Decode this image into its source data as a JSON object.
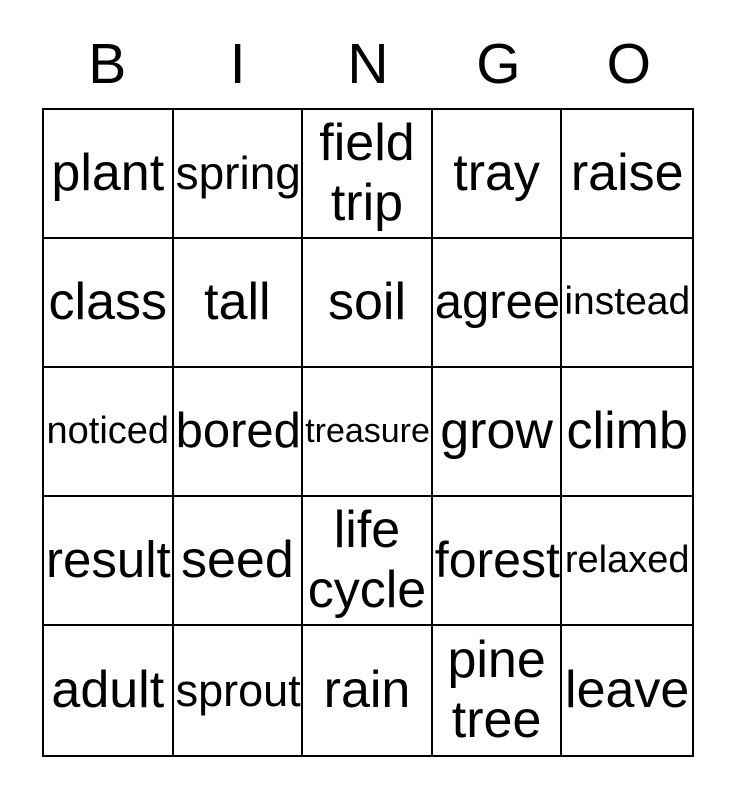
{
  "title": {
    "letters": [
      "B",
      "I",
      "N",
      "G",
      "O"
    ]
  },
  "grid": {
    "rows": [
      [
        "plant",
        "spring",
        "field trip",
        "tray",
        "raise"
      ],
      [
        "class",
        "tall",
        "soil",
        "agree",
        "instead"
      ],
      [
        "noticed",
        "bored",
        "treasure",
        "grow",
        "climb"
      ],
      [
        "result",
        "seed",
        "life cycle",
        "forest",
        "relaxed"
      ],
      [
        "adult",
        "sprout",
        "rain",
        "pine tree",
        "leave"
      ]
    ]
  },
  "colors": {
    "text": "#000000",
    "background": "#ffffff",
    "grid_border": "#000000"
  }
}
